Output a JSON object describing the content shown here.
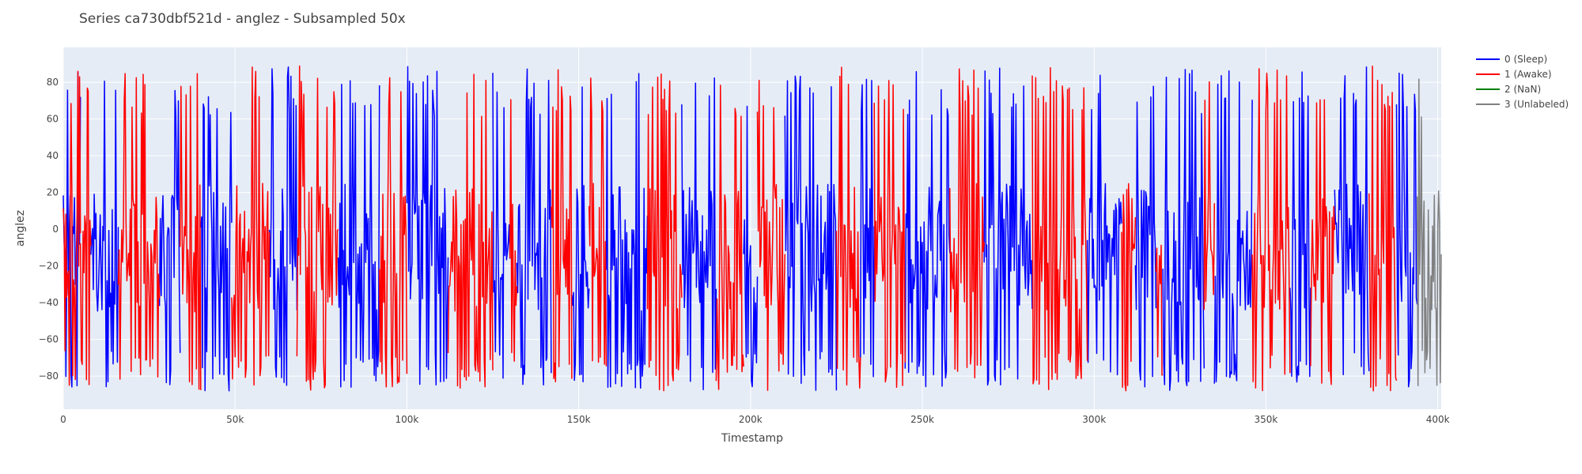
{
  "chart_data": {
    "type": "line",
    "title": "Series ca730dbf521d - anglez - Subsampled 50x",
    "xlabel": "Timestamp",
    "ylabel": "anglez",
    "xlim": [
      0,
      401000
    ],
    "ylim": [
      -98,
      99
    ],
    "x_ticks": [
      {
        "value": 0,
        "label": "0"
      },
      {
        "value": 50000,
        "label": "50k"
      },
      {
        "value": 100000,
        "label": "100k"
      },
      {
        "value": 150000,
        "label": "150k"
      },
      {
        "value": 200000,
        "label": "200k"
      },
      {
        "value": 250000,
        "label": "250k"
      },
      {
        "value": 300000,
        "label": "300k"
      },
      {
        "value": 350000,
        "label": "350k"
      },
      {
        "value": 400000,
        "label": "400k"
      }
    ],
    "y_ticks": [
      {
        "value": 80,
        "label": "80"
      },
      {
        "value": 60,
        "label": "60"
      },
      {
        "value": 40,
        "label": "40"
      },
      {
        "value": 20,
        "label": "20"
      },
      {
        "value": 0,
        "label": "0"
      },
      {
        "value": -20,
        "label": "−20"
      },
      {
        "value": -40,
        "label": "−40"
      },
      {
        "value": -60,
        "label": "−60"
      },
      {
        "value": -80,
        "label": "−80"
      }
    ],
    "grid": true,
    "legend_position": "top-right",
    "sample_step": 250,
    "amplitude": [
      -88,
      89
    ],
    "series": [
      {
        "name": "0 (Sleep)",
        "color": "#0000ff",
        "segments": [
          [
            0,
            5000
          ],
          [
            8000,
            16000
          ],
          [
            28000,
            34000
          ],
          [
            40000,
            49000
          ],
          [
            60000,
            68000
          ],
          [
            80000,
            92000
          ],
          [
            100000,
            112000
          ],
          [
            125000,
            130000
          ],
          [
            132000,
            142000
          ],
          [
            148000,
            153000
          ],
          [
            158000,
            170000
          ],
          [
            180000,
            190000
          ],
          [
            198000,
            202000
          ],
          [
            210000,
            225000
          ],
          [
            232000,
            236000
          ],
          [
            245000,
            258000
          ],
          [
            268000,
            282000
          ],
          [
            298000,
            308000
          ],
          [
            312000,
            318000
          ],
          [
            320000,
            332000
          ],
          [
            335000,
            346000
          ],
          [
            357000,
            363000
          ],
          [
            370000,
            380000
          ],
          [
            388000,
            394000
          ]
        ]
      },
      {
        "name": "1 (Awake)",
        "color": "#ff0000",
        "segments": [
          [
            0,
            5000
          ],
          [
            5000,
            8000
          ],
          [
            16000,
            28000
          ],
          [
            34000,
            40000
          ],
          [
            49000,
            60000
          ],
          [
            68000,
            80000
          ],
          [
            92000,
            100000
          ],
          [
            112000,
            125000
          ],
          [
            130000,
            132000
          ],
          [
            142000,
            148000
          ],
          [
            153000,
            158000
          ],
          [
            170000,
            180000
          ],
          [
            190000,
            198000
          ],
          [
            202000,
            210000
          ],
          [
            225000,
            232000
          ],
          [
            236000,
            245000
          ],
          [
            258000,
            268000
          ],
          [
            282000,
            298000
          ],
          [
            308000,
            312000
          ],
          [
            318000,
            320000
          ],
          [
            332000,
            335000
          ],
          [
            346000,
            357000
          ],
          [
            363000,
            370000
          ],
          [
            380000,
            388000
          ]
        ]
      },
      {
        "name": "2 (NaN)",
        "color": "#008000",
        "segments": []
      },
      {
        "name": "3 (Unlabeled)",
        "color": "#808080",
        "segments": [
          [
            394000,
            401000
          ]
        ]
      }
    ]
  }
}
